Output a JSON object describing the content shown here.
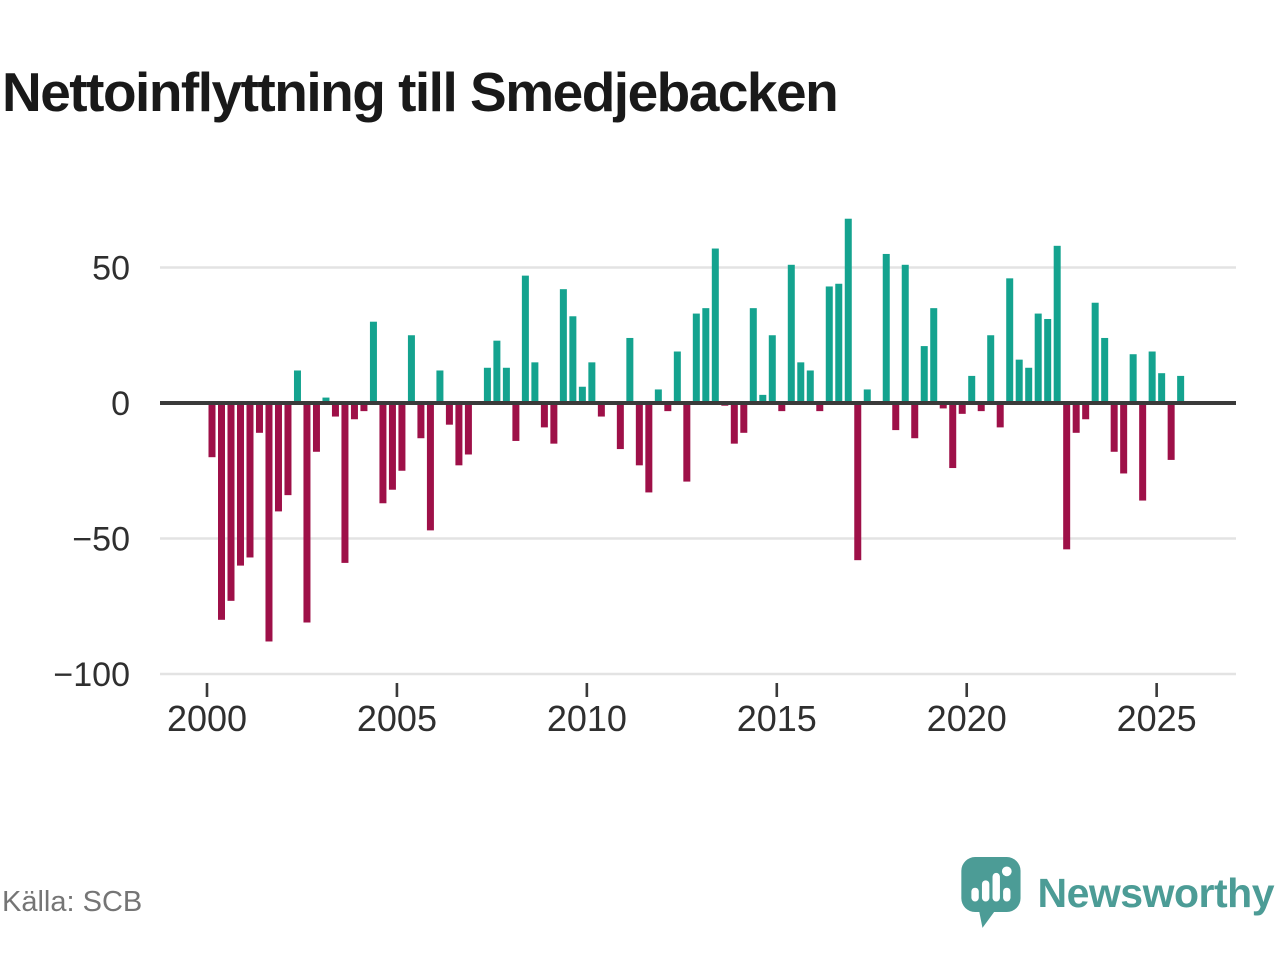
{
  "page": {
    "title": "Nettoinflyttning till Smedjebacken",
    "source": "Källa: SCB"
  },
  "brand": {
    "name": "Newsworthy",
    "logo_icon": "bar-chart-speech-bubble-icon",
    "color": "#4c9c96"
  },
  "chart_data": {
    "type": "bar",
    "title": "Nettoinflyttning till Smedjebacken",
    "frequency": "quarterly",
    "x_start": "2000 Q1",
    "x_end": "2025 Q3",
    "x_tick_years": [
      2000,
      2005,
      2010,
      2015,
      2020,
      2025
    ],
    "x_tick_labels": [
      "2000",
      "2005",
      "2010",
      "2015",
      "2020",
      "2025"
    ],
    "y_ticks": [
      50,
      0,
      -50,
      -100
    ],
    "y_tick_labels": [
      "50",
      "0",
      "−50",
      "−100"
    ],
    "ylim": [
      -100,
      71
    ],
    "grid": true,
    "legend": "none",
    "values": [
      -20,
      -80,
      -73,
      -60,
      -57,
      -11,
      -88,
      -40,
      -34,
      12,
      -81,
      -18,
      2,
      -5,
      -59,
      -6,
      -3,
      30,
      -37,
      -32,
      -25,
      25,
      -13,
      -47,
      12,
      -8,
      -23,
      -19,
      0,
      13,
      23,
      13,
      -14,
      47,
      15,
      -9,
      -15,
      42,
      32,
      6,
      15,
      -5,
      0,
      -17,
      24,
      -23,
      -33,
      5,
      -3,
      19,
      -29,
      33,
      35,
      57,
      -1,
      -15,
      -11,
      35,
      3,
      25,
      -3,
      51,
      15,
      12,
      -3,
      43,
      44,
      68,
      -58,
      5,
      0,
      55,
      -10,
      51,
      -13,
      21,
      35,
      -2,
      -24,
      -4,
      10,
      -3,
      25,
      -9,
      46,
      16,
      13,
      33,
      31,
      58,
      -54,
      -11,
      -6,
      37,
      24,
      -18,
      -26,
      18,
      -36,
      19,
      11,
      -21,
      10
    ],
    "colors": {
      "positive": "#14a38f",
      "negative": "#9e1048",
      "zero_line": "#3a3a3a",
      "grid_line": "#e3e3e3",
      "tick_text": "#2f2f2f"
    }
  }
}
